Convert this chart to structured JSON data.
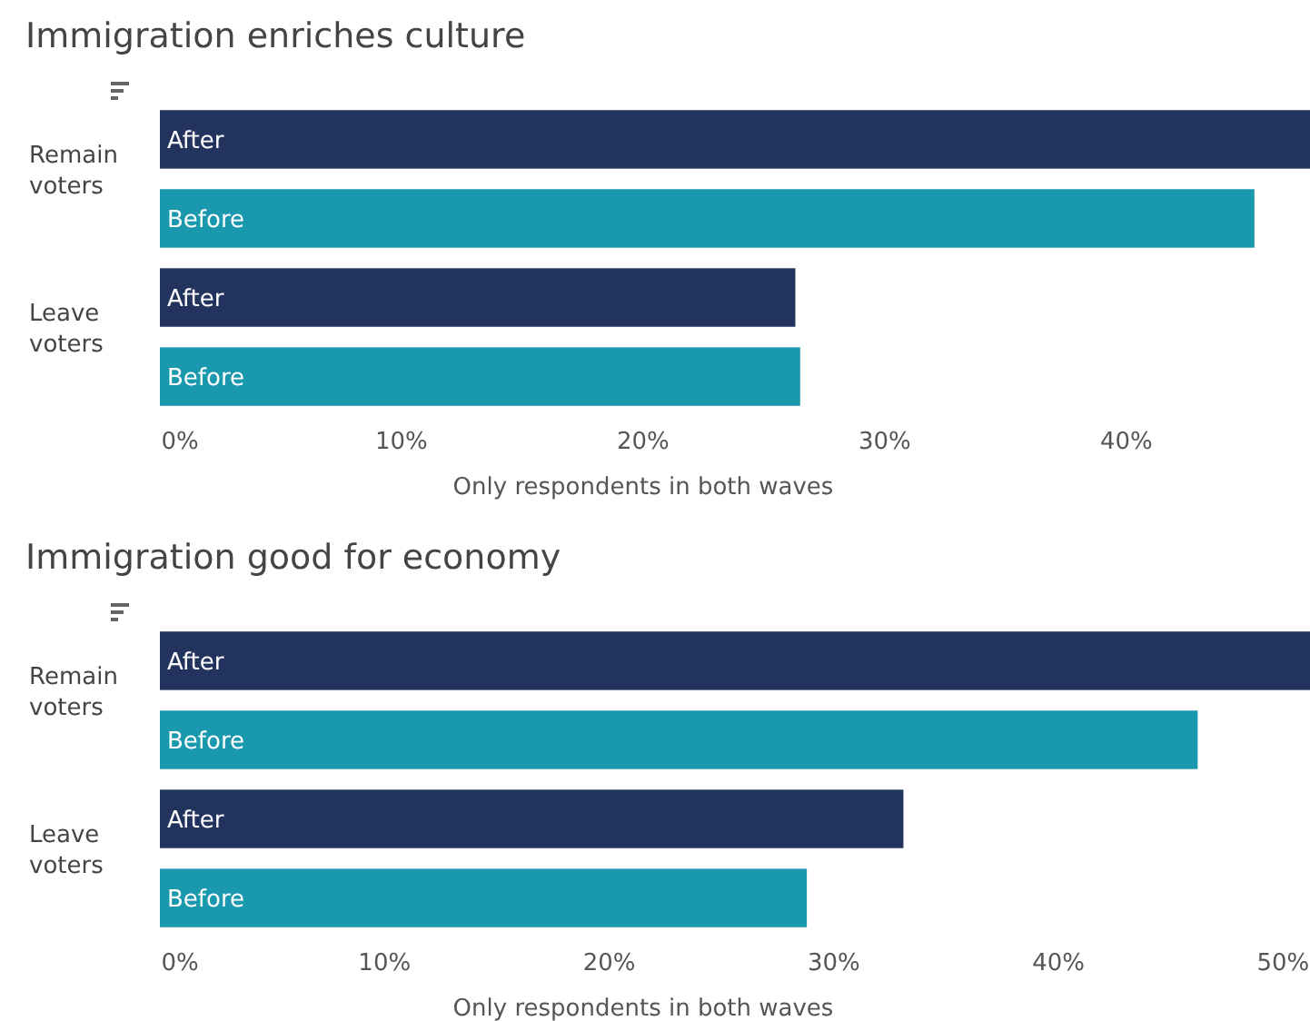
{
  "chart_data": [
    {
      "type": "bar",
      "orientation": "horizontal",
      "title": "Immigration enriches culture",
      "xlabel": "Only respondents in both waves",
      "categories": [
        "Remain voters",
        "Leave voters"
      ],
      "series": [
        {
          "name": "After",
          "color": "#22335e",
          "values": [
            47.6,
            26.3
          ]
        },
        {
          "name": "Before",
          "color": "#1a98ae",
          "values": [
            45.3,
            26.5
          ]
        }
      ],
      "xlim": [
        0,
        47.6
      ],
      "xticks": [
        {
          "value": 0,
          "label": "0%"
        },
        {
          "value": 10,
          "label": "10%"
        },
        {
          "value": 20,
          "label": "20%"
        },
        {
          "value": 30,
          "label": "30%"
        },
        {
          "value": 40,
          "label": "40%"
        }
      ],
      "grid": false,
      "legend": false
    },
    {
      "type": "bar",
      "orientation": "horizontal",
      "title": "Immigration good for economy",
      "xlabel": "Only respondents in both waves",
      "categories": [
        "Remain voters",
        "Leave voters"
      ],
      "series": [
        {
          "name": "After",
          "color": "#22335e",
          "values": [
            51.2,
            33.1
          ]
        },
        {
          "name": "Before",
          "color": "#1a98ae",
          "values": [
            46.2,
            28.8
          ]
        }
      ],
      "xlim": [
        0,
        51.2
      ],
      "xticks": [
        {
          "value": 0,
          "label": "0%"
        },
        {
          "value": 10,
          "label": "10%"
        },
        {
          "value": 20,
          "label": "20%"
        },
        {
          "value": 30,
          "label": "30%"
        },
        {
          "value": 40,
          "label": "40%"
        },
        {
          "value": 50,
          "label": "50%"
        }
      ],
      "grid": false,
      "legend": false
    }
  ]
}
